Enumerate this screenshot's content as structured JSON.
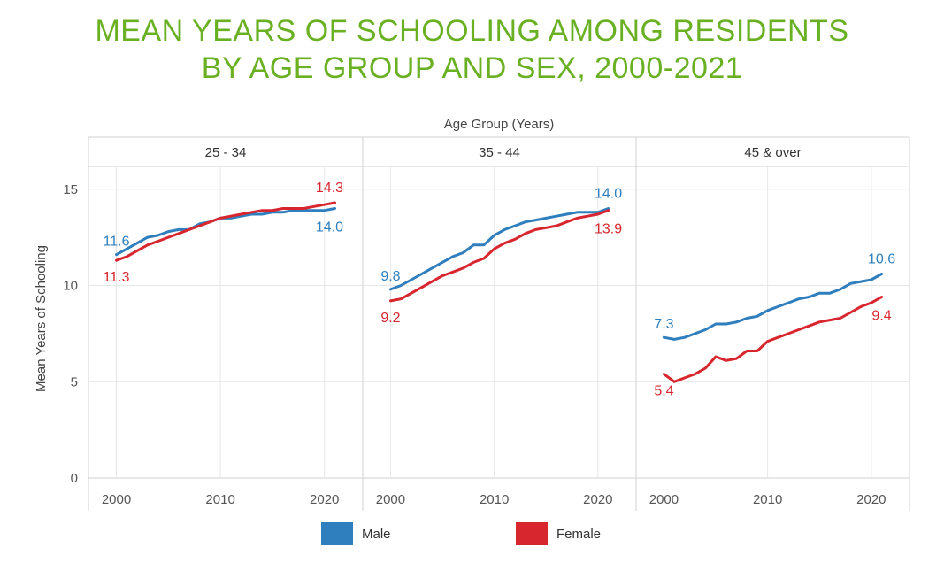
{
  "title": {
    "line1": "MEAN YEARS OF SCHOOLING AMONG RESIDENTS",
    "line2": "BY AGE GROUP AND SEX, 2000-2021"
  },
  "colors": {
    "title": "#6ab023",
    "male": "#2f7ebd",
    "female": "#d8262e",
    "grid": "#e6e6e6"
  },
  "chart_data": {
    "type": "line",
    "facet_title": "Age Group (Years)",
    "ylabel": "Mean Years of Schooling",
    "ylim": [
      0,
      16
    ],
    "yticks": [
      0,
      5,
      10,
      15
    ],
    "xlim": [
      1998,
      2023
    ],
    "xticks": [
      2000,
      2010,
      2020
    ],
    "grid": true,
    "legend_position": "bottom",
    "years": [
      2000,
      2001,
      2002,
      2003,
      2004,
      2005,
      2006,
      2007,
      2008,
      2009,
      2010,
      2011,
      2012,
      2013,
      2014,
      2015,
      2016,
      2017,
      2018,
      2019,
      2020,
      2021
    ],
    "panels": [
      {
        "name": "25 - 34",
        "series": [
          {
            "name": "Male",
            "values": [
              11.6,
              11.9,
              12.2,
              12.5,
              12.6,
              12.8,
              12.9,
              12.9,
              13.2,
              13.3,
              13.5,
              13.5,
              13.6,
              13.7,
              13.7,
              13.8,
              13.8,
              13.9,
              13.9,
              13.9,
              13.9,
              14.0
            ]
          },
          {
            "name": "Female",
            "values": [
              11.3,
              11.5,
              11.8,
              12.1,
              12.3,
              12.5,
              12.7,
              12.9,
              13.1,
              13.3,
              13.5,
              13.6,
              13.7,
              13.8,
              13.9,
              13.9,
              14.0,
              14.0,
              14.0,
              14.1,
              14.2,
              14.3
            ]
          }
        ],
        "labels": {
          "male_start": "11.6",
          "female_start": "11.3",
          "male_end": "14.0",
          "female_end": "14.3"
        }
      },
      {
        "name": "35 - 44",
        "series": [
          {
            "name": "Male",
            "values": [
              9.8,
              10.0,
              10.3,
              10.6,
              10.9,
              11.2,
              11.5,
              11.7,
              12.1,
              12.1,
              12.6,
              12.9,
              13.1,
              13.3,
              13.4,
              13.5,
              13.6,
              13.7,
              13.8,
              13.8,
              13.8,
              14.0
            ]
          },
          {
            "name": "Female",
            "values": [
              9.2,
              9.3,
              9.6,
              9.9,
              10.2,
              10.5,
              10.7,
              10.9,
              11.2,
              11.4,
              11.9,
              12.2,
              12.4,
              12.7,
              12.9,
              13.0,
              13.1,
              13.3,
              13.5,
              13.6,
              13.7,
              13.9
            ]
          }
        ],
        "labels": {
          "male_start": "9.8",
          "female_start": "9.2",
          "male_end": "14.0",
          "female_end": "13.9"
        }
      },
      {
        "name": "45 & over",
        "series": [
          {
            "name": "Male",
            "values": [
              7.3,
              7.2,
              7.3,
              7.5,
              7.7,
              8.0,
              8.0,
              8.1,
              8.3,
              8.4,
              8.7,
              8.9,
              9.1,
              9.3,
              9.4,
              9.6,
              9.6,
              9.8,
              10.1,
              10.2,
              10.3,
              10.6
            ]
          },
          {
            "name": "Female",
            "values": [
              5.4,
              5.0,
              5.2,
              5.4,
              5.7,
              6.3,
              6.1,
              6.2,
              6.6,
              6.6,
              7.1,
              7.3,
              7.5,
              7.7,
              7.9,
              8.1,
              8.2,
              8.3,
              8.6,
              8.9,
              9.1,
              9.4
            ]
          }
        ],
        "labels": {
          "male_start": "7.3",
          "female_start": "5.4",
          "male_end": "10.6",
          "female_end": "9.4"
        }
      }
    ],
    "legend": [
      {
        "name": "Male"
      },
      {
        "name": "Female"
      }
    ]
  }
}
